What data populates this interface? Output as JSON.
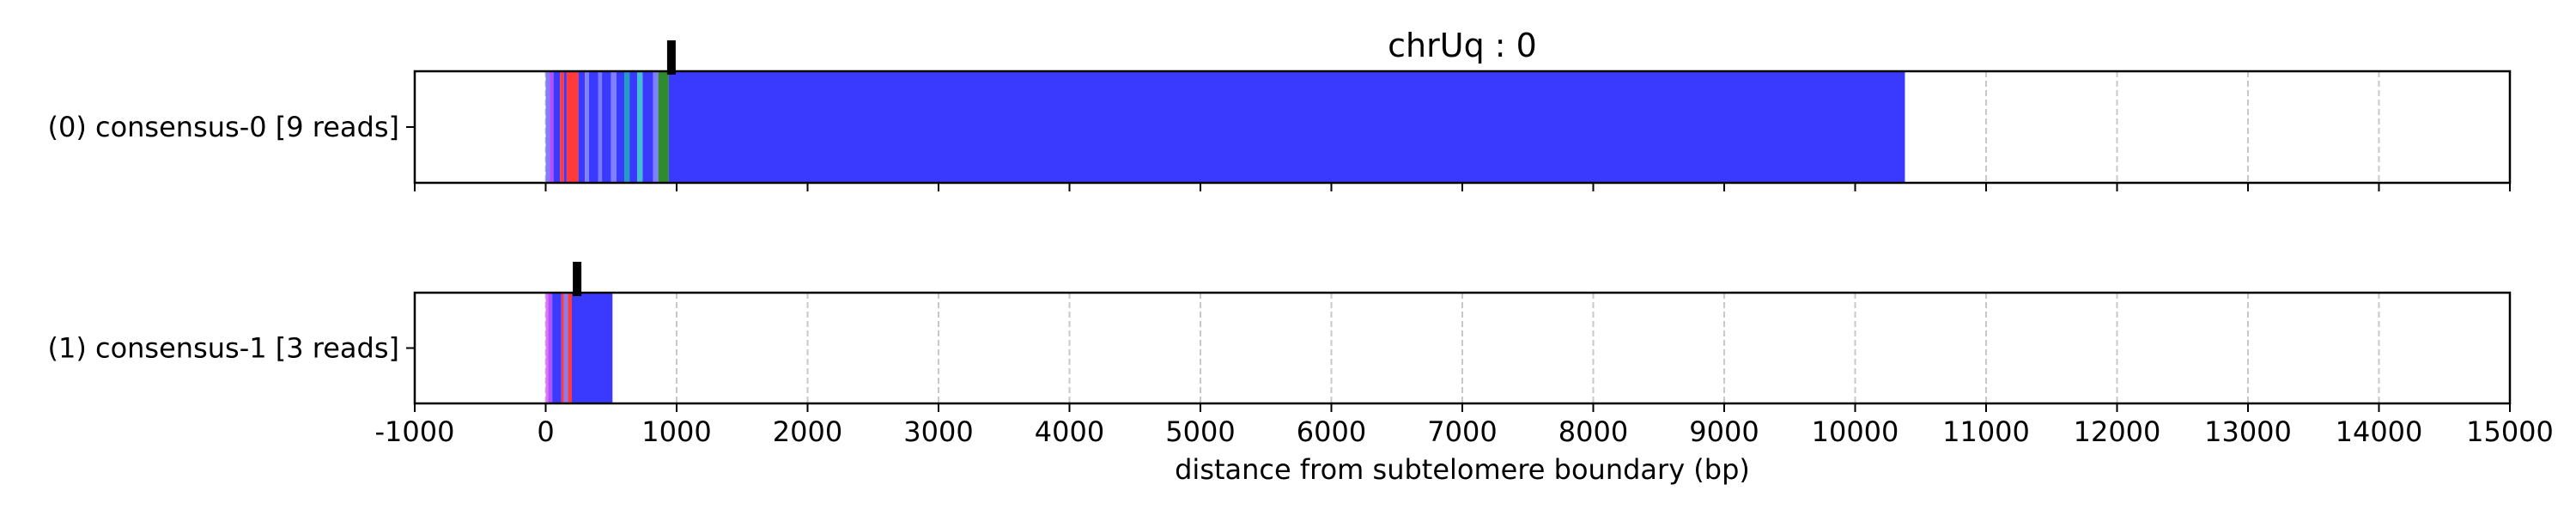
{
  "chart_data": {
    "type": "bar",
    "title": "chrUq : 0",
    "xlabel": "distance from subtelomere boundary (bp)",
    "ylabel": "",
    "xlim": [
      -1000,
      15000
    ],
    "xticks": [
      -1000,
      0,
      1000,
      2000,
      3000,
      4000,
      5000,
      6000,
      7000,
      8000,
      9000,
      10000,
      11000,
      12000,
      13000,
      14000,
      15000
    ],
    "xtick_labels": [
      "-1000",
      "0",
      "1000",
      "2000",
      "3000",
      "4000",
      "5000",
      "6000",
      "7000",
      "8000",
      "9000",
      "10000",
      "11000",
      "12000",
      "13000",
      "14000",
      "15000"
    ],
    "grid": "x dashed",
    "tracks": [
      {
        "label": "(0) consensus-0 [9 reads]",
        "marker_x": 960,
        "segments": [
          {
            "start": 0,
            "end": 30,
            "color": "#8080ff"
          },
          {
            "start": 30,
            "end": 60,
            "color": "#b050ff"
          },
          {
            "start": 60,
            "end": 110,
            "color": "#3a3aff"
          },
          {
            "start": 110,
            "end": 140,
            "color": "#ff3a3a"
          },
          {
            "start": 140,
            "end": 160,
            "color": "#3a3aff"
          },
          {
            "start": 160,
            "end": 250,
            "color": "#ff3a3a"
          },
          {
            "start": 250,
            "end": 300,
            "color": "#3a3aff"
          },
          {
            "start": 300,
            "end": 330,
            "color": "#8080ff"
          },
          {
            "start": 330,
            "end": 400,
            "color": "#3a3aff"
          },
          {
            "start": 400,
            "end": 430,
            "color": "#7a7aff"
          },
          {
            "start": 430,
            "end": 500,
            "color": "#3a3aff"
          },
          {
            "start": 500,
            "end": 540,
            "color": "#8080ff"
          },
          {
            "start": 540,
            "end": 600,
            "color": "#3a3aff"
          },
          {
            "start": 600,
            "end": 640,
            "color": "#20a0c0"
          },
          {
            "start": 640,
            "end": 700,
            "color": "#3a3aff"
          },
          {
            "start": 700,
            "end": 740,
            "color": "#40c0d0"
          },
          {
            "start": 740,
            "end": 820,
            "color": "#3a3aff"
          },
          {
            "start": 820,
            "end": 860,
            "color": "#8080ff"
          },
          {
            "start": 860,
            "end": 940,
            "color": "#2e8b2e"
          },
          {
            "start": 940,
            "end": 10380,
            "color": "#3a3aff"
          }
        ]
      },
      {
        "label": "(1) consensus-1 [3 reads]",
        "marker_x": 240,
        "segments": [
          {
            "start": 0,
            "end": 20,
            "color": "#e070ff"
          },
          {
            "start": 20,
            "end": 50,
            "color": "#b050ff"
          },
          {
            "start": 50,
            "end": 120,
            "color": "#3a3aff"
          },
          {
            "start": 120,
            "end": 140,
            "color": "#ff3a3a"
          },
          {
            "start": 140,
            "end": 170,
            "color": "#8080ff"
          },
          {
            "start": 170,
            "end": 200,
            "color": "#ff3a3a"
          },
          {
            "start": 200,
            "end": 510,
            "color": "#3a3aff"
          }
        ]
      }
    ]
  }
}
